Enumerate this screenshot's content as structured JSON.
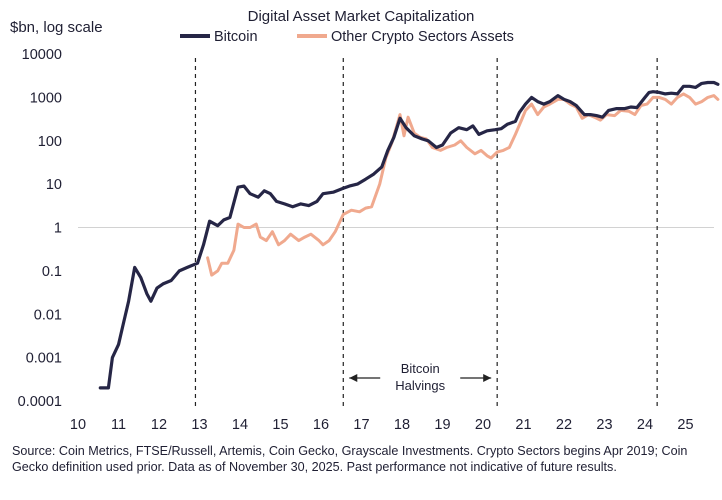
{
  "chart_data": {
    "type": "line",
    "title": "Digital Asset Market Capitalization",
    "ylabel": "$bn, log scale",
    "xlabel": "",
    "yscale": "log",
    "ylim": [
      0.0001,
      10000
    ],
    "xlim": [
      10,
      25.9
    ],
    "y_ticks": [
      {
        "value": 10000,
        "label": "10000"
      },
      {
        "value": 1000,
        "label": "1000"
      },
      {
        "value": 100,
        "label": "100"
      },
      {
        "value": 10,
        "label": "10"
      },
      {
        "value": 1,
        "label": "1"
      },
      {
        "value": 0.1,
        "label": "0.1"
      },
      {
        "value": 0.01,
        "label": "0.01"
      },
      {
        "value": 0.001,
        "label": "0.001"
      },
      {
        "value": 0.0001,
        "label": "0.0001"
      }
    ],
    "x_ticks": [
      "10",
      "11",
      "12",
      "13",
      "14",
      "15",
      "16",
      "17",
      "18",
      "19",
      "20",
      "21",
      "22",
      "23",
      "24",
      "25"
    ],
    "grid": false,
    "reference_line_y": 1,
    "legend_position": "top",
    "series": [
      {
        "name": "Bitcoin",
        "color": "#262646",
        "points": [
          [
            10.55,
            0.0002
          ],
          [
            10.75,
            0.0002
          ],
          [
            10.85,
            0.001
          ],
          [
            11.0,
            0.002
          ],
          [
            11.1,
            0.005
          ],
          [
            11.25,
            0.02
          ],
          [
            11.4,
            0.12
          ],
          [
            11.55,
            0.07
          ],
          [
            11.7,
            0.03
          ],
          [
            11.8,
            0.02
          ],
          [
            11.95,
            0.04
          ],
          [
            12.1,
            0.05
          ],
          [
            12.3,
            0.06
          ],
          [
            12.5,
            0.1
          ],
          [
            12.7,
            0.12
          ],
          [
            12.95,
            0.15
          ],
          [
            13.1,
            0.4
          ],
          [
            13.25,
            1.4
          ],
          [
            13.45,
            1.1
          ],
          [
            13.6,
            1.5
          ],
          [
            13.75,
            1.7
          ],
          [
            13.95,
            8.5
          ],
          [
            14.1,
            9
          ],
          [
            14.25,
            6
          ],
          [
            14.45,
            5
          ],
          [
            14.6,
            7
          ],
          [
            14.75,
            6
          ],
          [
            14.9,
            4
          ],
          [
            15.1,
            3.5
          ],
          [
            15.3,
            3
          ],
          [
            15.5,
            3.5
          ],
          [
            15.7,
            3.2
          ],
          [
            15.9,
            4
          ],
          [
            16.05,
            6
          ],
          [
            16.3,
            6.5
          ],
          [
            16.55,
            8
          ],
          [
            16.7,
            9
          ],
          [
            16.9,
            10
          ],
          [
            17.1,
            13
          ],
          [
            17.3,
            17
          ],
          [
            17.5,
            25
          ],
          [
            17.65,
            60
          ],
          [
            17.8,
            120
          ],
          [
            17.95,
            330
          ],
          [
            18.1,
            200
          ],
          [
            18.3,
            130
          ],
          [
            18.5,
            110
          ],
          [
            18.65,
            100
          ],
          [
            18.85,
            70
          ],
          [
            19.0,
            80
          ],
          [
            19.2,
            150
          ],
          [
            19.4,
            200
          ],
          [
            19.6,
            180
          ],
          [
            19.75,
            220
          ],
          [
            19.9,
            140
          ],
          [
            20.1,
            170
          ],
          [
            20.3,
            180
          ],
          [
            20.45,
            190
          ],
          [
            20.6,
            240
          ],
          [
            20.8,
            280
          ],
          [
            20.9,
            450
          ],
          [
            21.05,
            700
          ],
          [
            21.2,
            1000
          ],
          [
            21.35,
            800
          ],
          [
            21.5,
            700
          ],
          [
            21.65,
            800
          ],
          [
            21.85,
            1100
          ],
          [
            22.0,
            900
          ],
          [
            22.15,
            800
          ],
          [
            22.3,
            650
          ],
          [
            22.5,
            400
          ],
          [
            22.65,
            400
          ],
          [
            22.8,
            380
          ],
          [
            22.95,
            350
          ],
          [
            23.1,
            500
          ],
          [
            23.3,
            550
          ],
          [
            23.5,
            550
          ],
          [
            23.65,
            600
          ],
          [
            23.8,
            580
          ],
          [
            24.0,
            1000
          ],
          [
            24.1,
            1300
          ],
          [
            24.2,
            1350
          ],
          [
            24.35,
            1300
          ],
          [
            24.5,
            1200
          ],
          [
            24.65,
            1250
          ],
          [
            24.8,
            1200
          ],
          [
            24.95,
            1800
          ],
          [
            25.1,
            1800
          ],
          [
            25.25,
            1700
          ],
          [
            25.4,
            2100
          ],
          [
            25.55,
            2200
          ],
          [
            25.7,
            2200
          ],
          [
            25.8,
            2000
          ]
        ]
      },
      {
        "name": "Other Crypto Sectors Assets",
        "color": "#f0a98e",
        "points": [
          [
            13.2,
            0.2
          ],
          [
            13.3,
            0.08
          ],
          [
            13.45,
            0.1
          ],
          [
            13.55,
            0.15
          ],
          [
            13.7,
            0.15
          ],
          [
            13.85,
            0.3
          ],
          [
            13.95,
            1.2
          ],
          [
            14.1,
            1.0
          ],
          [
            14.25,
            1.0
          ],
          [
            14.4,
            1.2
          ],
          [
            14.5,
            0.6
          ],
          [
            14.65,
            0.5
          ],
          [
            14.8,
            0.8
          ],
          [
            14.95,
            0.4
          ],
          [
            15.1,
            0.5
          ],
          [
            15.25,
            0.7
          ],
          [
            15.45,
            0.5
          ],
          [
            15.6,
            0.6
          ],
          [
            15.75,
            0.7
          ],
          [
            15.95,
            0.5
          ],
          [
            16.05,
            0.4
          ],
          [
            16.2,
            0.5
          ],
          [
            16.35,
            0.8
          ],
          [
            16.55,
            2.0
          ],
          [
            16.75,
            2.5
          ],
          [
            16.95,
            2.3
          ],
          [
            17.1,
            2.8
          ],
          [
            17.25,
            3.0
          ],
          [
            17.45,
            10
          ],
          [
            17.6,
            40
          ],
          [
            17.75,
            90
          ],
          [
            17.95,
            400
          ],
          [
            18.05,
            130
          ],
          [
            18.15,
            350
          ],
          [
            18.3,
            150
          ],
          [
            18.45,
            120
          ],
          [
            18.6,
            110
          ],
          [
            18.75,
            70
          ],
          [
            18.95,
            60
          ],
          [
            19.1,
            70
          ],
          [
            19.3,
            80
          ],
          [
            19.45,
            100
          ],
          [
            19.6,
            70
          ],
          [
            19.8,
            50
          ],
          [
            19.95,
            60
          ],
          [
            20.1,
            45
          ],
          [
            20.2,
            40
          ],
          [
            20.35,
            55
          ],
          [
            20.5,
            60
          ],
          [
            20.65,
            70
          ],
          [
            20.8,
            140
          ],
          [
            20.95,
            300
          ],
          [
            21.05,
            500
          ],
          [
            21.2,
            700
          ],
          [
            21.35,
            400
          ],
          [
            21.5,
            600
          ],
          [
            21.65,
            700
          ],
          [
            21.85,
            900
          ],
          [
            22.0,
            900
          ],
          [
            22.15,
            700
          ],
          [
            22.3,
            600
          ],
          [
            22.45,
            330
          ],
          [
            22.6,
            400
          ],
          [
            22.75,
            350
          ],
          [
            22.9,
            300
          ],
          [
            23.05,
            400
          ],
          [
            23.25,
            380
          ],
          [
            23.4,
            500
          ],
          [
            23.6,
            480
          ],
          [
            23.75,
            400
          ],
          [
            23.9,
            650
          ],
          [
            24.05,
            700
          ],
          [
            24.2,
            1000
          ],
          [
            24.35,
            1000
          ],
          [
            24.5,
            900
          ],
          [
            24.65,
            700
          ],
          [
            24.8,
            1000
          ],
          [
            24.95,
            1200
          ],
          [
            25.1,
            1000
          ],
          [
            25.25,
            700
          ],
          [
            25.4,
            800
          ],
          [
            25.55,
            1000
          ],
          [
            25.7,
            1100
          ],
          [
            25.8,
            900
          ]
        ]
      }
    ],
    "halvings": [
      12.9,
      16.55,
      20.35,
      24.3
    ],
    "annotation": {
      "text_line1": "Bitcoin",
      "text_line2": "Halvings",
      "arrow_from_x": 16.55,
      "arrow_to_x": 20.35
    }
  },
  "source_note": "Source: Coin Metrics, FTSE/Russell, Artemis, Coin Gecko, Grayscale Investments. Crypto Sectors begins Apr 2019; Coin Gecko definition used prior. Data as of November 30, 2025. Past performance not indicative of future results."
}
